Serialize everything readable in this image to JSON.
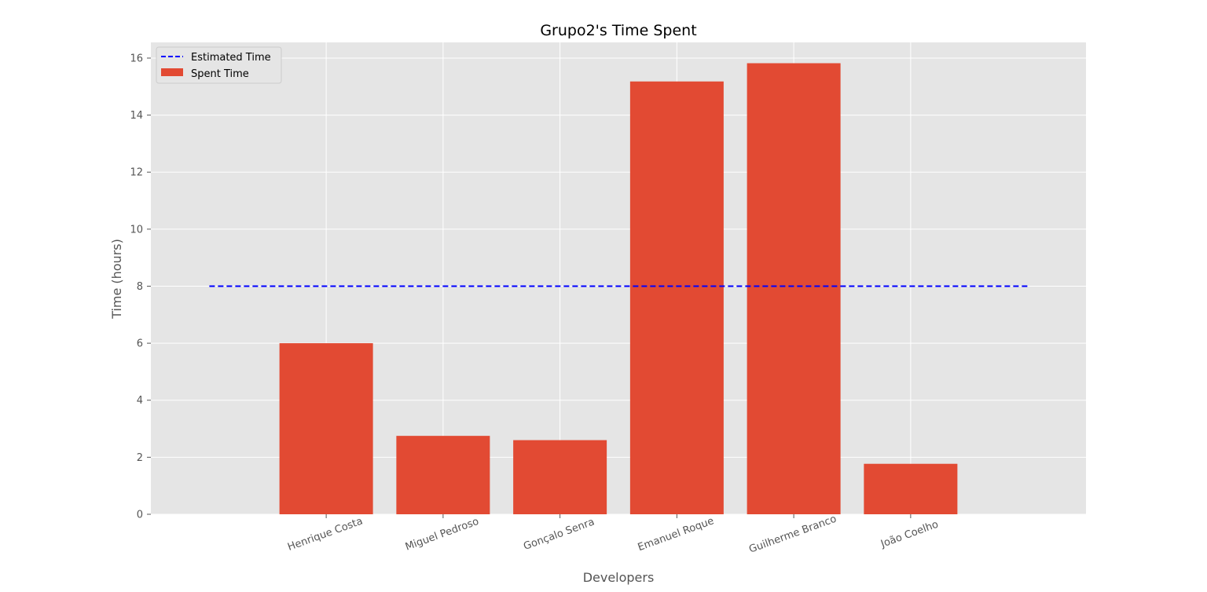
{
  "chart_data": {
    "type": "bar",
    "title": "Grupo2's Time Spent",
    "xlabel": "Developers",
    "ylabel": "Time (hours)",
    "categories": [
      "Henrique Costa",
      "Miguel Pedroso",
      "Gonçalo Senra",
      "Emanuel Roque",
      "Guilherme Branco",
      "João Coelho"
    ],
    "series": [
      {
        "name": "Spent Time",
        "values": [
          6.0,
          2.75,
          2.6,
          15.18,
          15.82,
          1.77
        ]
      }
    ],
    "reference_line": {
      "name": "Estimated Time",
      "value": 8,
      "style": "dashed"
    },
    "ylim": [
      0,
      16.55
    ],
    "yticks": [
      0,
      2,
      4,
      6,
      8,
      10,
      12,
      14,
      16
    ],
    "grid": true,
    "legend_position": "top-left",
    "colors": {
      "bar": "#e24a33",
      "estimated_line": "#0000ff",
      "plot_background": "#e5e5e5",
      "grid": "#ffffff"
    }
  }
}
